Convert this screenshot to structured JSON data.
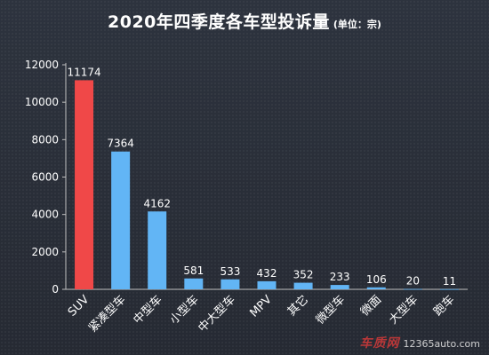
{
  "chart_data": {
    "type": "bar",
    "title": "2020年四季度各车型投诉量",
    "unit_note": "(单位：宗)",
    "xlabel": "",
    "ylabel": "",
    "categories": [
      "SUV",
      "紧凑型车",
      "中型车",
      "小型车",
      "中大型车",
      "MPV",
      "其它",
      "微型车",
      "微面",
      "大型车",
      "跑车"
    ],
    "values": [
      11174,
      7364,
      4162,
      581,
      533,
      432,
      352,
      233,
      106,
      20,
      11
    ],
    "ylim": [
      0,
      12000
    ],
    "yticks": [
      0,
      2000,
      4000,
      6000,
      8000,
      10000,
      12000
    ],
    "grid": false,
    "legend": "none",
    "colors": {
      "highlight": "#f04848",
      "default": "#62b5f5",
      "axis": "#bfbfbf",
      "text": "#ffffff"
    },
    "highlight_index": 0
  },
  "watermark": {
    "logo": "车质网",
    "url": "12365auto.com"
  }
}
